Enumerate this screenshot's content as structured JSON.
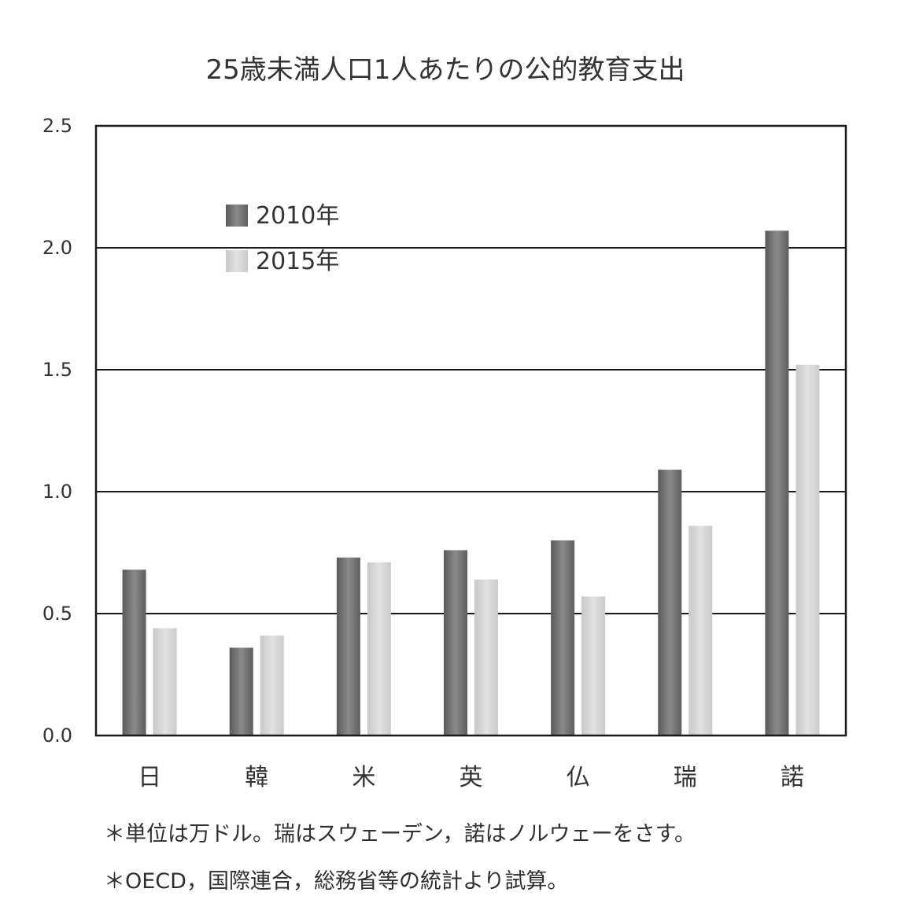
{
  "chart_data": {
    "type": "bar",
    "title": "25歳未満人口1人あたりの公的教育支出",
    "categories": [
      "日",
      "韓",
      "米",
      "英",
      "仏",
      "瑞",
      "諾"
    ],
    "series": [
      {
        "name": "2010年",
        "values": [
          0.68,
          0.36,
          0.73,
          0.76,
          0.8,
          1.09,
          2.07
        ],
        "color": "#6e6e6e"
      },
      {
        "name": "2015年",
        "values": [
          0.44,
          0.41,
          0.71,
          0.64,
          0.57,
          0.86,
          1.52
        ],
        "color": "#d3d3d3"
      }
    ],
    "yticks": [
      "0.0",
      "0.5",
      "1.0",
      "1.5",
      "2.0",
      "2.5"
    ],
    "ylim": [
      0,
      2.5
    ],
    "grid": true,
    "legend_position": "top-left inside plot"
  },
  "notes": [
    "＊単位は万ドル。瑞はスウェーデン，諾はノルウェーをさす。",
    "＊OECD，国際連合，総務省等の統計より試算。"
  ]
}
